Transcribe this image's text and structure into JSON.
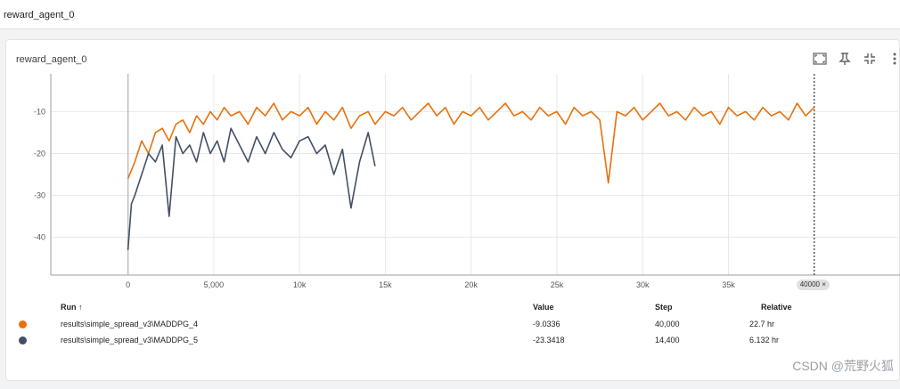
{
  "page_title": "reward_agent_0",
  "card_title": "reward_agent_0",
  "toolbar": {
    "fullscreen_icon": "fullscreen-icon",
    "pin_icon": "pin-icon",
    "collapse_icon": "collapse-icon",
    "more_icon": "more-vert-icon"
  },
  "chart_data": {
    "type": "line",
    "title": "reward_agent_0",
    "xlabel": "",
    "ylabel": "",
    "xlim": [
      -4500,
      45000
    ],
    "ylim": [
      -49,
      -1
    ],
    "x_ticks": [
      0,
      5000,
      10000,
      15000,
      20000,
      25000,
      30000,
      35000
    ],
    "x_tick_labels": [
      "0",
      "5,000",
      "10k",
      "15k",
      "20k",
      "25k",
      "30k",
      "35k"
    ],
    "y_ticks": [
      -10,
      -20,
      -30,
      -40
    ],
    "y_tick_labels": [
      "-10",
      "-20",
      "-30",
      "-40"
    ],
    "hover_step_label": "40000 ×",
    "hover_step": 40000,
    "series": [
      {
        "name": "results\\simple_spread_v3\\MADDPG_4",
        "color": "#e8710a",
        "x": [
          0,
          400,
          800,
          1200,
          1600,
          2000,
          2400,
          2800,
          3200,
          3600,
          4000,
          4400,
          4800,
          5200,
          5600,
          6000,
          6500,
          7000,
          7500,
          8000,
          8500,
          9000,
          9500,
          10000,
          10500,
          11000,
          11500,
          12000,
          12500,
          13000,
          13500,
          14000,
          14400,
          15000,
          15500,
          16000,
          16500,
          17000,
          17500,
          18000,
          18500,
          19000,
          19500,
          20000,
          20500,
          21000,
          21500,
          22000,
          22500,
          23000,
          23500,
          24000,
          24500,
          25000,
          25500,
          26000,
          26500,
          27000,
          27500,
          28000,
          28500,
          29000,
          29500,
          30000,
          30500,
          31000,
          31500,
          32000,
          32500,
          33000,
          33500,
          34000,
          34500,
          35000,
          35500,
          36000,
          36500,
          37000,
          37500,
          38000,
          38500,
          39000,
          39500,
          40000
        ],
        "y": [
          -26,
          -22,
          -17,
          -20,
          -15,
          -14,
          -17,
          -13,
          -12,
          -15,
          -11,
          -13,
          -10,
          -12,
          -9,
          -11,
          -10,
          -13,
          -9,
          -11,
          -8,
          -12,
          -10,
          -11,
          -9,
          -13,
          -10,
          -12,
          -9,
          -14,
          -11,
          -10,
          -13,
          -10,
          -11,
          -9,
          -12,
          -10,
          -8,
          -11,
          -9,
          -13,
          -10,
          -11,
          -9,
          -12,
          -10,
          -8,
          -11,
          -10,
          -12,
          -9,
          -11,
          -10,
          -13,
          -9,
          -11,
          -10,
          -12,
          -27,
          -10,
          -11,
          -9,
          -12,
          -10,
          -8,
          -11,
          -10,
          -12,
          -9,
          -11,
          -10,
          -13,
          -9,
          -11,
          -10,
          -12,
          -9,
          -11,
          -10,
          -12,
          -8,
          -11,
          -9
        ]
      },
      {
        "name": "results\\simple_spread_v3\\MADDPG_5",
        "color": "#425066",
        "x": [
          0,
          200,
          400,
          800,
          1200,
          1600,
          2000,
          2400,
          2800,
          3200,
          3600,
          4000,
          4400,
          4800,
          5200,
          5600,
          6000,
          6500,
          7000,
          7500,
          8000,
          8500,
          9000,
          9500,
          10000,
          10500,
          11000,
          11500,
          12000,
          12500,
          13000,
          13500,
          14000,
          14400
        ],
        "y": [
          -43,
          -32,
          -30,
          -25,
          -20,
          -22,
          -18,
          -35,
          -16,
          -20,
          -18,
          -22,
          -15,
          -20,
          -17,
          -22,
          -14,
          -18,
          -22,
          -16,
          -20,
          -15,
          -19,
          -21,
          -17,
          -16,
          -20,
          -18,
          -25,
          -19,
          -33,
          -22,
          -15,
          -23
        ]
      }
    ]
  },
  "table": {
    "headers": {
      "run": "Run ↑",
      "value": "Value",
      "step": "Step",
      "relative": "Relative"
    },
    "rows": [
      {
        "color": "#e8710a",
        "run": "results\\simple_spread_v3\\MADDPG_4",
        "value": "-9.0336",
        "step": "40,000",
        "relative": "22.7 hr"
      },
      {
        "color": "#425066",
        "run": "results\\simple_spread_v3\\MADDPG_5",
        "value": "-23.3418",
        "step": "14,400",
        "relative": "6.132 hr"
      }
    ]
  },
  "watermark": "CSDN @荒野火狐"
}
